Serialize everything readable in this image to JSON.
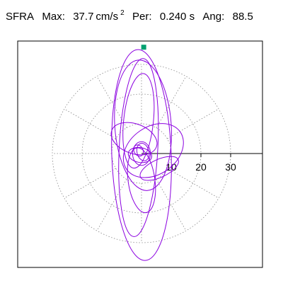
{
  "header": {
    "name": "SFRA",
    "max_label": "Max:",
    "max_value": "37.7",
    "max_unit": "cm/s",
    "max_unit_sup": "2",
    "period_label": "Per:",
    "period_value": "0.240 s",
    "angle_label": "Ang:",
    "angle_value": "88.5"
  },
  "colors": {
    "trace": "#8b00e0",
    "marker": "#00a070",
    "grid": "#888888",
    "frame": "#000000"
  },
  "chart_data": {
    "type": "polar-orbit",
    "title": "",
    "max": 37.7,
    "max_unit": "cm/s2",
    "period_s": 0.24,
    "angle_deg": 88.5,
    "rlim": [
      0,
      37.7
    ],
    "radial_ticks": [
      10,
      20,
      30
    ],
    "radial_tick_labels": [
      "10",
      "20",
      "30"
    ],
    "rings": [
      10,
      20,
      30
    ],
    "spokes_deg": [
      0,
      30,
      60,
      90,
      120,
      150,
      180,
      210,
      240,
      270,
      300,
      330
    ],
    "grid": true,
    "orbits": [
      {
        "rx": 10.0,
        "ry": 35.5,
        "cx": 0.0,
        "cy": -0.5,
        "rot": 2
      },
      {
        "rx": 6.5,
        "ry": 30.0,
        "cx": -1.0,
        "cy": 2.0,
        "rot": -3
      },
      {
        "rx": 9.5,
        "ry": 22.0,
        "cx": 0.5,
        "cy": 9.5,
        "rot": 4
      },
      {
        "rx": 5.0,
        "ry": 16.0,
        "cx": -1.0,
        "cy": 11.0,
        "rot": -6
      },
      {
        "rx": 11.0,
        "ry": 8.0,
        "cx": 4.0,
        "cy": 1.0,
        "rot": 35
      },
      {
        "rx": 8.0,
        "ry": 5.0,
        "cx": -2.5,
        "cy": 5.0,
        "rot": -20
      },
      {
        "rx": 7.0,
        "ry": 3.0,
        "cx": 6.0,
        "cy": -5.0,
        "rot": 25
      },
      {
        "rx": 4.5,
        "ry": 11.0,
        "cx": 0.0,
        "cy": -9.0,
        "rot": 8
      },
      {
        "rx": 3.0,
        "ry": 4.0,
        "cx": 0.0,
        "cy": 0.0,
        "rot": 0
      },
      {
        "rx": 2.0,
        "ry": 3.0,
        "cx": 0.5,
        "cy": 0.5,
        "rot": 15
      },
      {
        "rx": 4.0,
        "ry": 2.5,
        "cx": -0.5,
        "cy": -0.5,
        "rot": -10
      },
      {
        "rx": 1.5,
        "ry": 2.0,
        "cx": -1.0,
        "cy": 1.0,
        "rot": 30
      }
    ],
    "peak": {
      "angle_deg": 88.5,
      "r": 37.7
    }
  }
}
